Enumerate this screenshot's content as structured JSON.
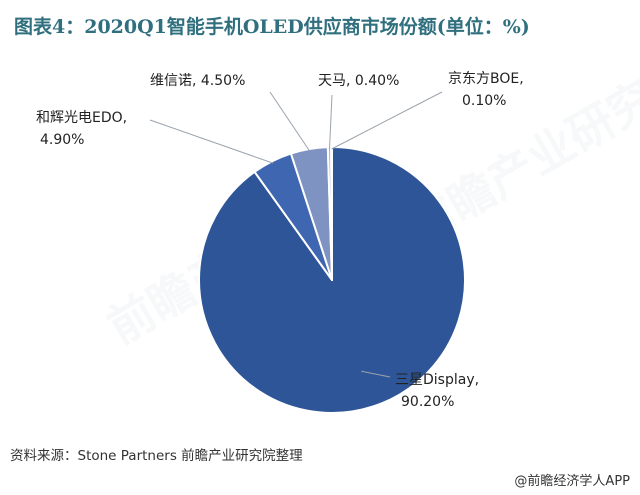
{
  "title": "图表4：2020Q1智能手机OLED供应商市场份额(单位：%)",
  "chart_data": {
    "type": "pie",
    "unit": "%",
    "slices": [
      {
        "name": "三星Display",
        "value": 90.2,
        "value_label": "90.20%",
        "color": "#2e5597"
      },
      {
        "name": "和辉光电EDO",
        "value": 4.9,
        "value_label": "4.90%",
        "color": "#3f66b0"
      },
      {
        "name": "维信诺",
        "value": 4.5,
        "value_label": "4.50%",
        "color": "#7f93c2"
      },
      {
        "name": "天马",
        "value": 0.4,
        "value_label": "0.40%",
        "color": "#aab5d6"
      },
      {
        "name": "京东方BOE",
        "value": 0.1,
        "value_label": "0.10%",
        "color": "#c7cfe5"
      }
    ]
  },
  "source": "资料来源：Stone Partners 前瞻产业研究院整理",
  "credit": "@前瞻经济学人APP",
  "watermark": "前瞻产业研究院"
}
